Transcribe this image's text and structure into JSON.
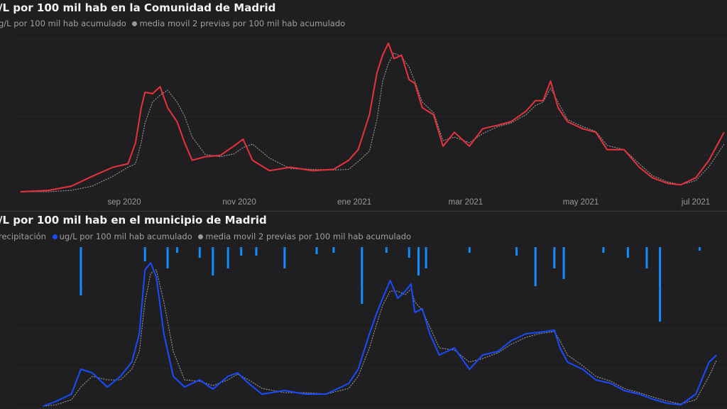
{
  "chart_data": [
    {
      "type": "line",
      "title": "/L por 100 mil hab en la Comunidad de Madrid",
      "x_unit": "days since 2020-07-01",
      "xlim": [
        0,
        385
      ],
      "ylim": [
        0,
        220
      ],
      "grid": true,
      "legend_position": "top-left",
      "x_ticks": [
        {
          "day": 62,
          "label": "sep 2020"
        },
        {
          "day": 123,
          "label": "nov 2020"
        },
        {
          "day": 184,
          "label": "ene 2021"
        },
        {
          "day": 243,
          "label": "mar 2021"
        },
        {
          "day": 304,
          "label": "may 2021"
        },
        {
          "day": 365,
          "label": "jul 2021"
        }
      ],
      "series": [
        {
          "name": "g/L por 100 mil hab acumulado",
          "color": "#e8323c",
          "x": [
            7,
            22,
            34,
            45,
            56,
            64,
            68,
            71,
            73,
            77,
            81,
            85,
            90,
            94,
            98,
            105,
            113,
            120,
            125,
            130,
            139,
            150,
            162,
            173,
            181,
            186,
            192,
            196,
            199,
            202,
            205,
            209,
            213,
            216,
            220,
            226,
            231,
            237,
            245,
            252,
            260,
            267,
            275,
            280,
            284,
            288,
            292,
            297,
            305,
            312,
            318,
            327,
            335,
            342,
            350,
            357,
            365,
            372,
            380
          ],
          "y": [
            2,
            4,
            10,
            24,
            37,
            42,
            72,
            122,
            144,
            142,
            152,
            122,
            102,
            72,
            47,
            52,
            54,
            67,
            77,
            47,
            32,
            37,
            32,
            34,
            47,
            62,
            112,
            172,
            197,
            214,
            192,
            197,
            162,
            157,
            122,
            112,
            67,
            87,
            67,
            92,
            97,
            102,
            117,
            132,
            132,
            160,
            122,
            102,
            92,
            87,
            62,
            62,
            37,
            22,
            14,
            12,
            22,
            47,
            87
          ]
        },
        {
          "name": "media movil 2 previas por 100 mil hab acumulado",
          "color": "#9a9a9a",
          "x": [
            7,
            22,
            34,
            45,
            56,
            64,
            68,
            71,
            73,
            77,
            81,
            85,
            90,
            94,
            98,
            105,
            113,
            120,
            125,
            130,
            139,
            150,
            162,
            173,
            181,
            186,
            192,
            196,
            199,
            202,
            205,
            209,
            213,
            216,
            220,
            226,
            231,
            237,
            245,
            252,
            260,
            267,
            275,
            280,
            284,
            288,
            292,
            297,
            305,
            312,
            318,
            327,
            335,
            342,
            350,
            357,
            365,
            372,
            380
          ],
          "y": [
            2,
            2,
            4,
            10,
            24,
            37,
            42,
            72,
            100,
            130,
            140,
            147,
            130,
            110,
            80,
            55,
            52,
            56,
            65,
            70,
            50,
            35,
            34,
            33,
            34,
            45,
            60,
            105,
            160,
            185,
            200,
            195,
            180,
            160,
            130,
            115,
            75,
            80,
            72,
            85,
            95,
            100,
            112,
            125,
            130,
            150,
            130,
            105,
            95,
            88,
            68,
            62,
            42,
            25,
            16,
            12,
            18,
            38,
            70
          ]
        }
      ]
    },
    {
      "type": "line",
      "title": "/L por 100 mil hab en el municipio de Madrid",
      "x_unit": "days since 2020-07-01",
      "xlim": [
        0,
        385
      ],
      "ylim": [
        0,
        225
      ],
      "grid": true,
      "legend_position": "top-left",
      "series": [
        {
          "name": "recipitación",
          "type": "bar",
          "color": "#118dff",
          "orientation": "top-down",
          "x": [
            39,
            73,
            85,
            90,
            102,
            109,
            117,
            124,
            132,
            147,
            164,
            173,
            188,
            201,
            213,
            218,
            222,
            245,
            270,
            280,
            290,
            295,
            316,
            329,
            339,
            346,
            367
          ],
          "y": [
            68,
            20,
            30,
            8,
            15,
            40,
            30,
            12,
            12,
            30,
            10,
            8,
            80,
            8,
            15,
            40,
            30,
            8,
            12,
            55,
            30,
            45,
            8,
            15,
            30,
            105,
            5
          ]
        },
        {
          "name": "ug/L por 100 mil hab acumulado",
          "color": "#1a4cff",
          "x": [
            19,
            26,
            34,
            39,
            45,
            53,
            60,
            66,
            70,
            73,
            76,
            79,
            83,
            88,
            94,
            102,
            109,
            117,
            122,
            128,
            135,
            147,
            158,
            169,
            181,
            186,
            192,
            196,
            199,
            203,
            207,
            211,
            214,
            216,
            220,
            224,
            229,
            237,
            245,
            252,
            260,
            267,
            275,
            282,
            290,
            293,
            297,
            305,
            312,
            320,
            327,
            335,
            342,
            350,
            357,
            365,
            372,
            376
          ],
          "y": [
            3,
            10,
            20,
            55,
            50,
            30,
            45,
            65,
            105,
            195,
            205,
            185,
            105,
            45,
            30,
            40,
            27,
            45,
            50,
            35,
            20,
            25,
            20,
            20,
            35,
            55,
            105,
            135,
            155,
            180,
            155,
            165,
            175,
            135,
            140,
            105,
            75,
            85,
            55,
            75,
            80,
            95,
            105,
            107,
            110,
            85,
            65,
            55,
            40,
            35,
            25,
            20,
            13,
            7,
            5,
            20,
            65,
            75
          ]
        },
        {
          "name": "media movil 2 previas por 100 mil hab acumulado",
          "color": "#9a9a9a",
          "x": [
            19,
            26,
            34,
            39,
            45,
            53,
            60,
            66,
            70,
            73,
            76,
            79,
            83,
            88,
            94,
            102,
            109,
            117,
            122,
            128,
            135,
            147,
            158,
            169,
            181,
            186,
            192,
            196,
            199,
            203,
            207,
            211,
            214,
            216,
            220,
            224,
            229,
            237,
            245,
            252,
            260,
            267,
            275,
            282,
            290,
            293,
            297,
            305,
            312,
            320,
            327,
            335,
            342,
            350,
            357,
            365,
            372,
            376
          ],
          "y": [
            3,
            5,
            12,
            30,
            45,
            40,
            40,
            55,
            80,
            150,
            190,
            195,
            150,
            80,
            40,
            38,
            32,
            40,
            48,
            40,
            28,
            22,
            22,
            20,
            28,
            45,
            85,
            120,
            145,
            165,
            165,
            160,
            168,
            150,
            138,
            115,
            85,
            82,
            65,
            70,
            78,
            90,
            100,
            105,
            108,
            95,
            75,
            60,
            45,
            38,
            28,
            22,
            16,
            10,
            6,
            12,
            45,
            68
          ]
        }
      ]
    }
  ]
}
